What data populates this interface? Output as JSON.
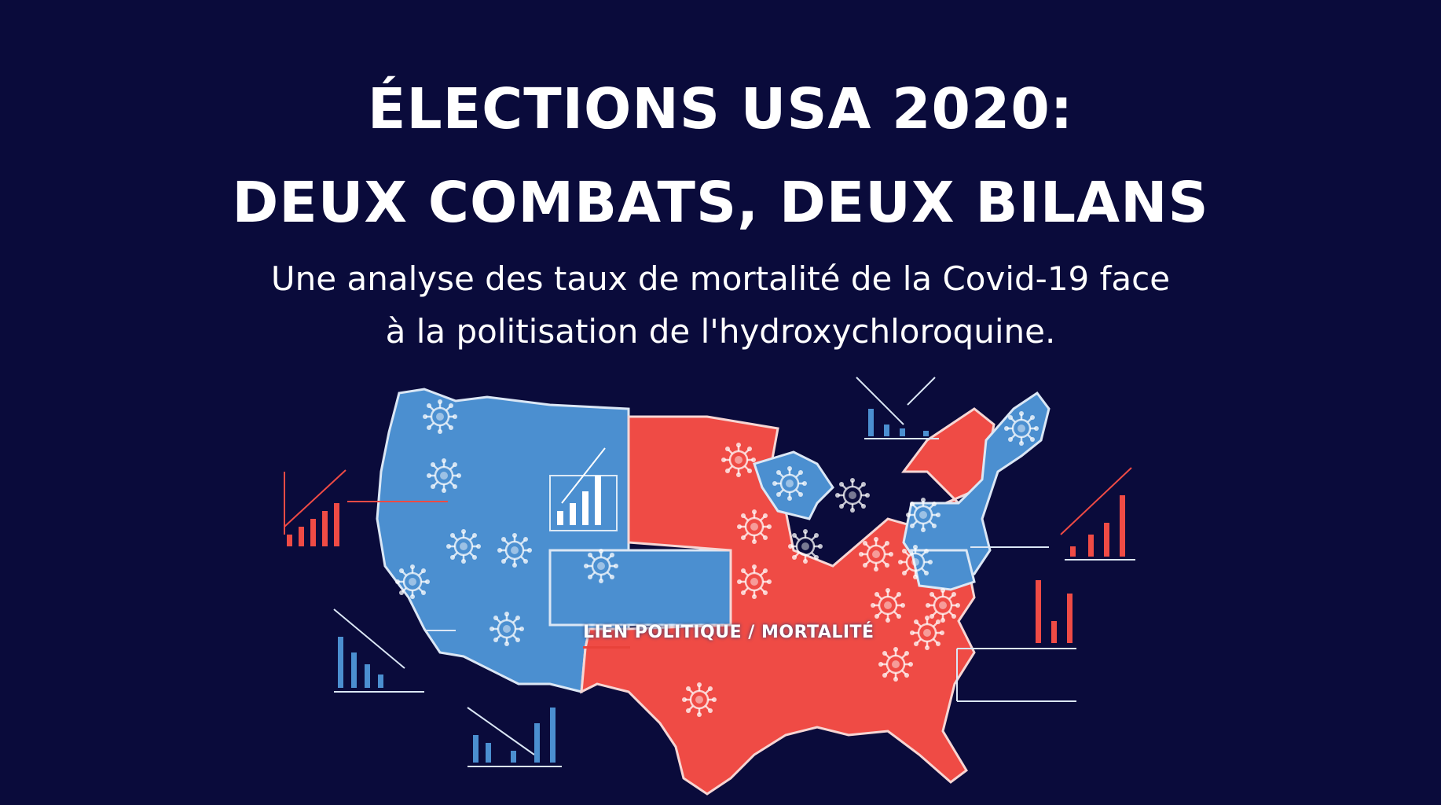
{
  "header": {
    "title_line1": "ÉLECTIONS USA 2020:",
    "title_line2": "DEUX COMBATS, DEUX BILANS",
    "subtitle_line1": "Une analyse des taux de mortalité de la Covid-19 face",
    "subtitle_line2": "à la politisation de l'hydroxychloroquine."
  },
  "map": {
    "label": "LIEN POLITIQUE / MORTALITÉ",
    "colors": {
      "background": "#0a0b3b",
      "democrat_blue": "#4b8fd0",
      "republican_red": "#ef4b45",
      "border": "#dbe7f5"
    },
    "icons": [
      "virus-icon",
      "bar-chart-icon",
      "trend-arrow-icon"
    ]
  }
}
